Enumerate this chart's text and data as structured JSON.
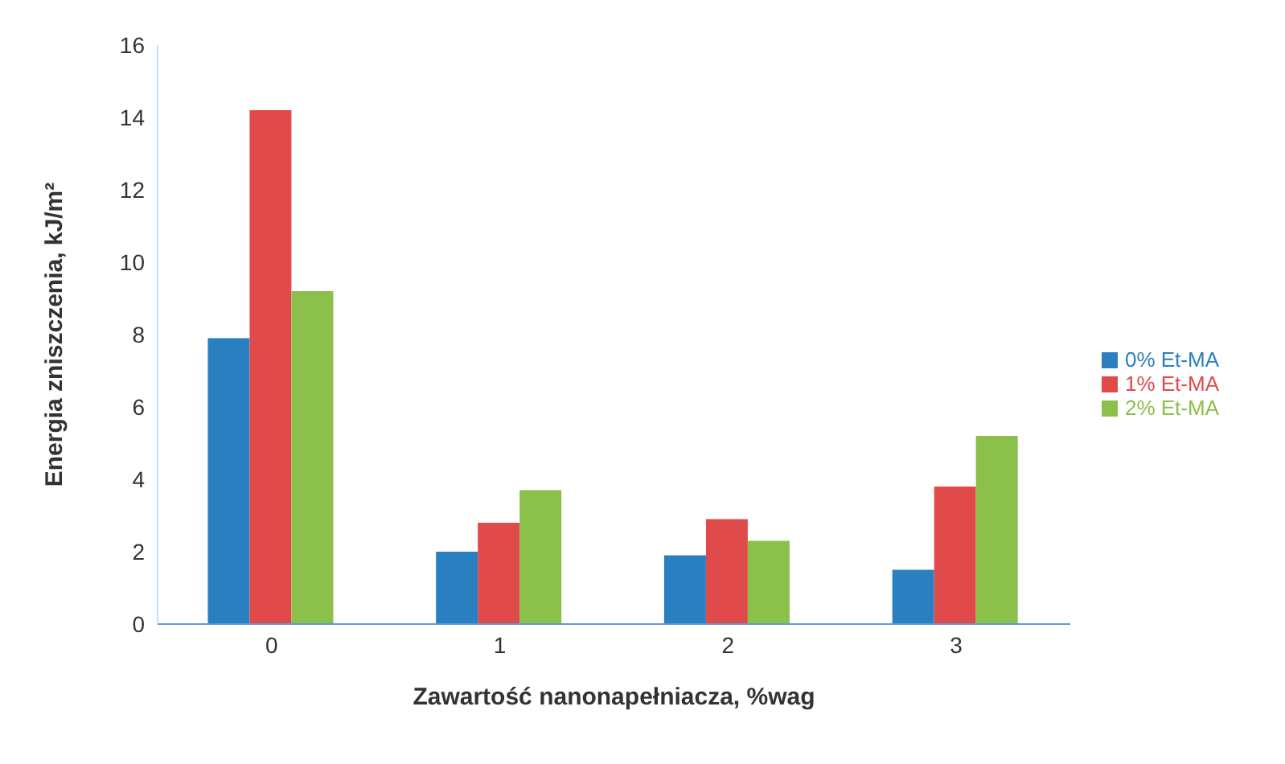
{
  "chart_data": {
    "type": "bar",
    "xlabel": "Zawartość nanonapełniacza, %wag",
    "ylabel": "Energia zniszczenia, kJ/m²",
    "categories": [
      "0",
      "1",
      "2",
      "3"
    ],
    "series": [
      {
        "name": "0% Et-MA",
        "color": "#2a7fc1",
        "values": [
          7.9,
          2.0,
          1.9,
          1.5
        ]
      },
      {
        "name": "1% Et-MA",
        "color": "#e04a4a",
        "values": [
          14.2,
          2.8,
          2.9,
          3.8
        ]
      },
      {
        "name": "2% Et-MA",
        "color": "#8bc04a",
        "values": [
          9.2,
          3.7,
          2.3,
          5.2
        ]
      }
    ],
    "ylim": [
      0,
      16
    ],
    "yticks": [
      0,
      2,
      4,
      6,
      8,
      10,
      12,
      14,
      16
    ],
    "grid": false,
    "legend": "right"
  }
}
